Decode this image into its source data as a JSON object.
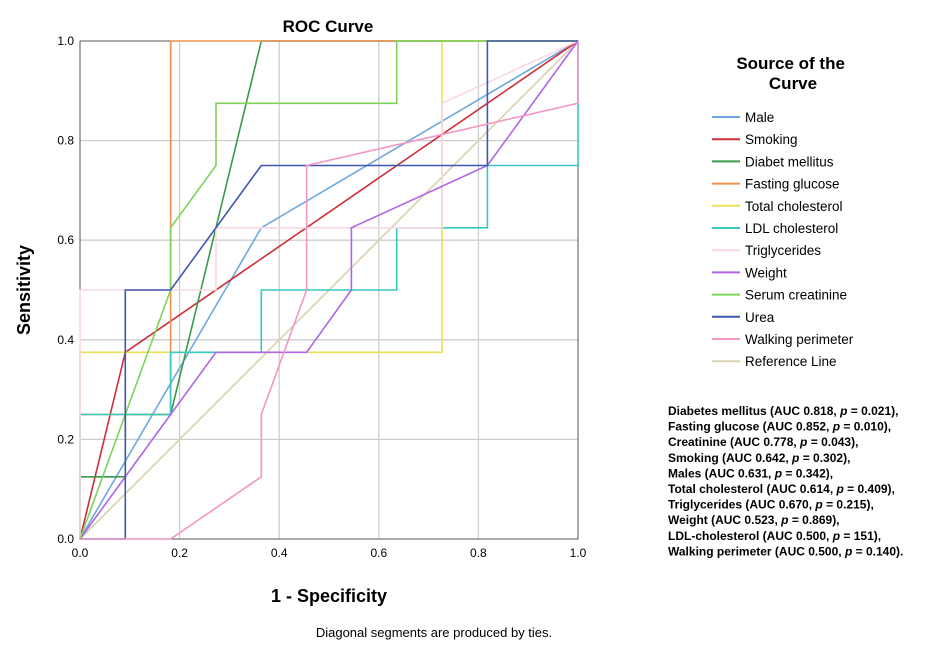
{
  "chart_data": {
    "type": "line",
    "title": "ROC Curve",
    "xlabel": "1 - Specificity",
    "ylabel": "Sensitivity",
    "xlim": [
      0,
      1
    ],
    "ylim": [
      0,
      1
    ],
    "x_ticks": [
      "0.0",
      "0.2",
      "0.4",
      "0.6",
      "0.8",
      "1.0"
    ],
    "y_ticks": [
      "0.0",
      "0.2",
      "0.4",
      "0.6",
      "0.8",
      "1.0"
    ],
    "grid": true,
    "legend_title": "Source of the Curve",
    "legend_position": "right",
    "footnote": "Diagonal segments are produced by ties.",
    "annotation_lines": [
      "Diabetes mellitus (AUC  0.818, p = 0.021),",
      "Fasting glucose (AUC 0.852, p = 0.010),",
      "Creatinine (AUC 0.778, p = 0.043),",
      "Smoking (AUC 0.642, p = 0.302),",
      "Males (AUC 0.631, p = 0.342),",
      "Total cholesterol (AUC 0.614, p = 0.409),",
      "Triglycerides (AUC 0.670, p = 0.215),",
      "Weight (AUC 0.523, p = 0.869),",
      "LDL-cholesterol (AUC 0.500, p = 151),",
      "Walking perimeter (AUC 0.500, p = 0.140)."
    ],
    "series": [
      {
        "name": "Male",
        "color": "#6fa8dc",
        "x": [
          0,
          0.364,
          1
        ],
        "y": [
          0,
          0.625,
          1
        ]
      },
      {
        "name": "Smoking",
        "color": "#cc2f3a",
        "x": [
          0,
          0.091,
          0.818,
          1
        ],
        "y": [
          0,
          0.375,
          0.875,
          1
        ]
      },
      {
        "name": "Diabet mellitus",
        "color": "#3a9a4a",
        "x": [
          0,
          0,
          0.091,
          0.091,
          0.182,
          0.364,
          1
        ],
        "y": [
          0,
          0.125,
          0.125,
          0.25,
          0.25,
          1,
          1
        ]
      },
      {
        "name": "Fasting glucose",
        "color": "#f0904f",
        "x": [
          0,
          0,
          0.182,
          0.182,
          1
        ],
        "y": [
          0,
          0.25,
          0.25,
          1,
          1
        ]
      },
      {
        "name": "Total cholesterol",
        "color": "#e8e05a",
        "x": [
          0,
          0,
          0.727,
          0.727,
          1
        ],
        "y": [
          0,
          0.375,
          0.375,
          1,
          1
        ]
      },
      {
        "name": "LDL cholesterol",
        "color": "#36c9c0",
        "x": [
          0,
          0,
          0.182,
          0.182,
          0.364,
          0.364,
          0.636,
          0.636,
          0.818,
          0.818,
          1,
          1
        ],
        "y": [
          0,
          0.25,
          0.25,
          0.375,
          0.375,
          0.5,
          0.5,
          0.625,
          0.625,
          0.75,
          0.75,
          1
        ]
      },
      {
        "name": "Triglycerides",
        "color": "#f8d8e4",
        "x": [
          0,
          0,
          0.273,
          0.273,
          0.727,
          0.727,
          1
        ],
        "y": [
          0,
          0.5,
          0.5,
          0.625,
          0.625,
          0.875,
          1
        ]
      },
      {
        "name": "Weight",
        "color": "#b066e6",
        "x": [
          0,
          0.182,
          0.273,
          0.455,
          0.545,
          0.545,
          0.818,
          1
        ],
        "y": [
          0,
          0.25,
          0.375,
          0.375,
          0.5,
          0.625,
          0.75,
          1
        ]
      },
      {
        "name": "Serum creatinine",
        "color": "#7ed35a",
        "x": [
          0,
          0.182,
          0.182,
          0.273,
          0.273,
          0.636,
          0.636,
          1
        ],
        "y": [
          0,
          0.5,
          0.625,
          0.75,
          0.875,
          0.875,
          1,
          1
        ]
      },
      {
        "name": "Urea",
        "color": "#3e58b0",
        "x": [
          0,
          0.091,
          0.091,
          0.182,
          0.364,
          0.818,
          0.818,
          1
        ],
        "y": [
          0,
          0,
          0.5,
          0.5,
          0.75,
          0.75,
          1,
          1
        ]
      },
      {
        "name": "Walking perimeter",
        "color": "#f495c4",
        "x": [
          0,
          0.182,
          0.364,
          0.364,
          0.455,
          0.455,
          1,
          1
        ],
        "y": [
          0,
          0,
          0.125,
          0.25,
          0.5,
          0.75,
          0.875,
          1
        ]
      },
      {
        "name": "Reference Line",
        "color": "#d8d2b0",
        "x": [
          0,
          1
        ],
        "y": [
          0,
          1
        ]
      }
    ]
  }
}
